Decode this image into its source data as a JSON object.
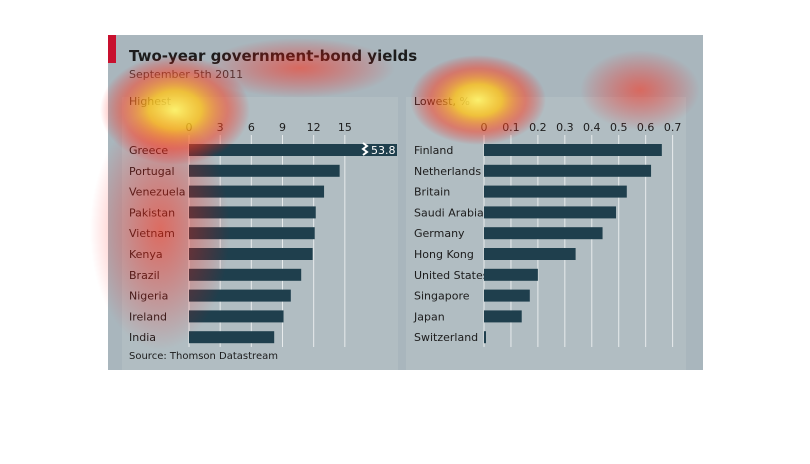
{
  "title": "Two-year government-bond yields",
  "subtitle": "September 5th 2011",
  "source": "Source: Thomson Datastream",
  "colors": {
    "bar": "#1f3f4d",
    "background": "#a9b6bd",
    "accent": "#c8102e",
    "grid": "#ffffff",
    "panel": "#b8c2c7"
  },
  "chart_data": [
    {
      "type": "bar",
      "orientation": "horizontal",
      "panel_label": "Highest",
      "categories": [
        "Greece",
        "Portugal",
        "Venezuela",
        "Pakistan",
        "Vietnam",
        "Kenya",
        "Brazil",
        "Nigeria",
        "Ireland",
        "India"
      ],
      "values": [
        53.8,
        14.5,
        13.0,
        12.2,
        12.1,
        11.9,
        10.8,
        9.8,
        9.1,
        8.2
      ],
      "value_labels": [
        "53.8",
        "",
        "",
        "",
        "",
        "",
        "",
        "",
        "",
        ""
      ],
      "xlim": [
        0,
        18
      ],
      "xticks": [
        0,
        3,
        6,
        9,
        12,
        15
      ],
      "tick_labels": [
        "0",
        "3",
        "6",
        "9",
        "12",
        "15"
      ],
      "truncated": [
        "Greece"
      ],
      "grid": true
    },
    {
      "type": "bar",
      "orientation": "horizontal",
      "panel_label": "Lowest, %",
      "categories": [
        "Finland",
        "Netherlands",
        "Britain",
        "Saudi Arabia",
        "Germany",
        "Hong Kong",
        "United States",
        "Singapore",
        "Japan",
        "Switzerland"
      ],
      "values": [
        0.66,
        0.62,
        0.53,
        0.49,
        0.44,
        0.34,
        0.2,
        0.17,
        0.14,
        0.005
      ],
      "xlim": [
        0,
        0.72
      ],
      "xticks": [
        0,
        0.1,
        0.2,
        0.3,
        0.4,
        0.5,
        0.6,
        0.7
      ],
      "tick_labels": [
        "0",
        "0.1",
        "0.2",
        "0.3",
        "0.4",
        "0.5",
        "0.6",
        "0.7"
      ],
      "grid": true
    }
  ]
}
